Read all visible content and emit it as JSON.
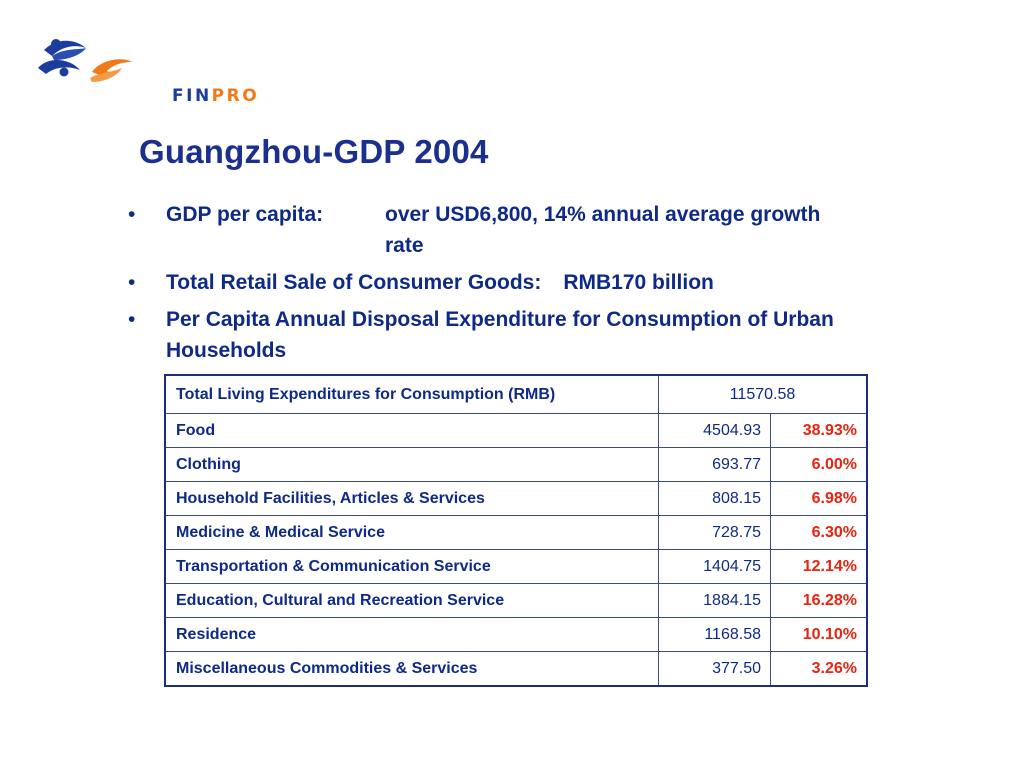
{
  "logo": {
    "text_fin": "FIN",
    "text_pro": "PRO",
    "colors": {
      "blue": "#1d3d9c",
      "orange": "#f07a1a"
    }
  },
  "title": "Guangzhou-GDP 2004",
  "bullets": {
    "gdp_label": "GDP per capita:",
    "gdp_value": "over USD6,800, 14% annual average growth rate",
    "retail_label": "Total Retail Sale of Consumer Goods:",
    "retail_value": "RMB170 billion",
    "percapita": "Per Capita Annual Disposal Expenditure for Consumption of Urban Households"
  },
  "table": {
    "total_label": "Total Living Expenditures for Consumption (RMB)",
    "total_value": "11570.58",
    "rows": [
      {
        "item": "Food",
        "amount": "4504.93",
        "share": "38.93%"
      },
      {
        "item": "Clothing",
        "amount": "693.77",
        "share": "6.00%"
      },
      {
        "item": "Household Facilities, Articles & Services",
        "amount": "808.15",
        "share": "6.98%"
      },
      {
        "item": "Medicine & Medical Service",
        "amount": "728.75",
        "share": "6.30%"
      },
      {
        "item": "Transportation & Communication Service",
        "amount": "1404.75",
        "share": "12.14%"
      },
      {
        "item": "Education, Cultural and Recreation Service",
        "amount": "1884.15",
        "share": "16.28%"
      },
      {
        "item": "Residence",
        "amount": "1168.58",
        "share": "10.10%"
      },
      {
        "item": "Miscellaneous Commodities & Services",
        "amount": "377.50",
        "share": "3.26%"
      }
    ],
    "colors": {
      "text": "#0f2a86",
      "share": "#e8230f",
      "border": "#1e2f7a"
    }
  }
}
